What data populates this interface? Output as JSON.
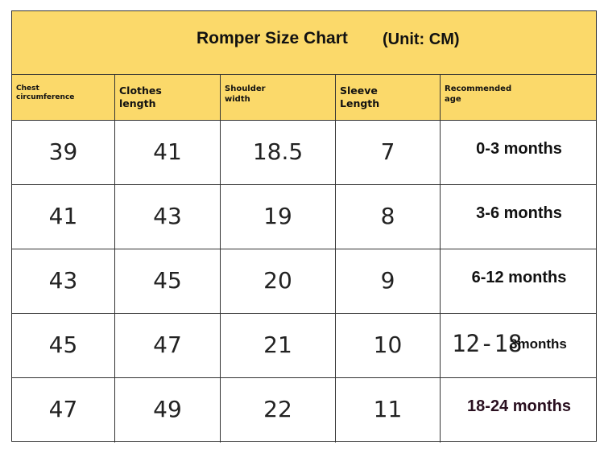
{
  "title": "Romper Size Chart",
  "unit": "(Unit: CM)",
  "colors": {
    "header_bg": "#fbd96a",
    "border": "#333333",
    "age_last": "#2a1020"
  },
  "columns": [
    "Chest circumference",
    "Clothes length",
    "Shoulder width",
    "Sleeve Length",
    "Recommended age"
  ],
  "rows": [
    {
      "chest": "39",
      "length": "41",
      "shoulder": "18.5",
      "sleeve": "7",
      "age": "0-3 months"
    },
    {
      "chest": "41",
      "length": "43",
      "shoulder": "19",
      "sleeve": "8",
      "age": "3-6 months"
    },
    {
      "chest": "43",
      "length": "45",
      "shoulder": "20",
      "sleeve": "9",
      "age": "6-12 months"
    },
    {
      "chest": "45",
      "length": "47",
      "shoulder": "21",
      "sleeve": "10",
      "age_prefix": "12-18",
      "age_suffix": "3months"
    },
    {
      "chest": "47",
      "length": "49",
      "shoulder": "22",
      "sleeve": "11",
      "age": "18-24 months"
    }
  ]
}
